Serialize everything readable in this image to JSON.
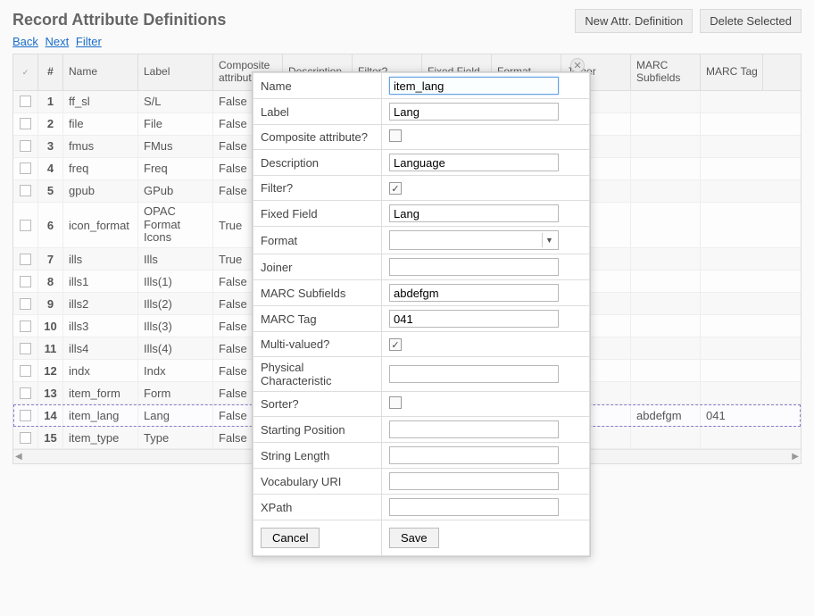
{
  "title": "Record Attribute Definitions",
  "actions": {
    "new": "New Attr. Definition",
    "delete": "Delete Selected"
  },
  "nav": {
    "back": "Back",
    "next": "Next",
    "filter": "Filter"
  },
  "columns": {
    "chk": "✓",
    "num": "#",
    "name": "Name",
    "label": "Label",
    "composite": "Composite attribute?",
    "description": "Description",
    "filter": "Filter?",
    "fixed": "Fixed Field",
    "format": "Format",
    "joiner": "Joiner",
    "subfields": "MARC Subfields",
    "tag": "MARC Tag"
  },
  "rows": [
    {
      "n": "1",
      "name": "ff_sl",
      "label": "S/L",
      "comp": "False"
    },
    {
      "n": "2",
      "name": "file",
      "label": "File",
      "comp": "False"
    },
    {
      "n": "3",
      "name": "fmus",
      "label": "FMus",
      "comp": "False"
    },
    {
      "n": "4",
      "name": "freq",
      "label": "Freq",
      "comp": "False"
    },
    {
      "n": "5",
      "name": "gpub",
      "label": "GPub",
      "comp": "False"
    },
    {
      "n": "6",
      "name": "icon_format",
      "label": "OPAC Format Icons",
      "comp": "True"
    },
    {
      "n": "7",
      "name": "ills",
      "label": "Ills",
      "comp": "True"
    },
    {
      "n": "8",
      "name": "ills1",
      "label": "Ills(1)",
      "comp": "False"
    },
    {
      "n": "9",
      "name": "ills2",
      "label": "Ills(2)",
      "comp": "False"
    },
    {
      "n": "10",
      "name": "ills3",
      "label": "Ills(3)",
      "comp": "False"
    },
    {
      "n": "11",
      "name": "ills4",
      "label": "Ills(4)",
      "comp": "False"
    },
    {
      "n": "12",
      "name": "indx",
      "label": "Indx",
      "comp": "False"
    },
    {
      "n": "13",
      "name": "item_form",
      "label": "Form",
      "comp": "False"
    },
    {
      "n": "14",
      "name": "item_lang",
      "label": "Lang",
      "comp": "False",
      "subf": "abdefgm",
      "tag": "041",
      "selected": true
    },
    {
      "n": "15",
      "name": "item_type",
      "label": "Type",
      "comp": "False"
    }
  ],
  "dialog": {
    "fields": {
      "name": {
        "label": "Name",
        "value": "item_lang",
        "type": "text",
        "active": true
      },
      "label": {
        "label": "Label",
        "value": "Lang",
        "type": "text"
      },
      "composite": {
        "label": "Composite attribute?",
        "checked": false,
        "type": "check"
      },
      "description": {
        "label": "Description",
        "value": "Language",
        "type": "text"
      },
      "filter": {
        "label": "Filter?",
        "checked": true,
        "type": "check"
      },
      "fixed": {
        "label": "Fixed Field",
        "value": "Lang",
        "type": "text"
      },
      "format": {
        "label": "Format",
        "value": "",
        "type": "select"
      },
      "joiner": {
        "label": "Joiner",
        "value": "",
        "type": "text"
      },
      "subfields": {
        "label": "MARC Subfields",
        "value": "abdefgm",
        "type": "text"
      },
      "tag": {
        "label": "MARC Tag",
        "value": "041",
        "type": "text"
      },
      "multi": {
        "label": "Multi-valued?",
        "checked": true,
        "type": "check"
      },
      "physchar": {
        "label": "Physical Characteristic",
        "value": "",
        "type": "text"
      },
      "sorter": {
        "label": "Sorter?",
        "checked": false,
        "type": "check"
      },
      "startpos": {
        "label": "Starting Position",
        "value": "",
        "type": "text"
      },
      "strlen": {
        "label": "String Length",
        "value": "",
        "type": "text"
      },
      "vocab": {
        "label": "Vocabulary URI",
        "value": "",
        "type": "text"
      },
      "xpath": {
        "label": "XPath",
        "value": "",
        "type": "text"
      }
    },
    "order": [
      "name",
      "label",
      "composite",
      "description",
      "filter",
      "fixed",
      "format",
      "joiner",
      "subfields",
      "tag",
      "multi",
      "physchar",
      "sorter",
      "startpos",
      "strlen",
      "vocab",
      "xpath"
    ],
    "buttons": {
      "cancel": "Cancel",
      "save": "Save"
    }
  }
}
